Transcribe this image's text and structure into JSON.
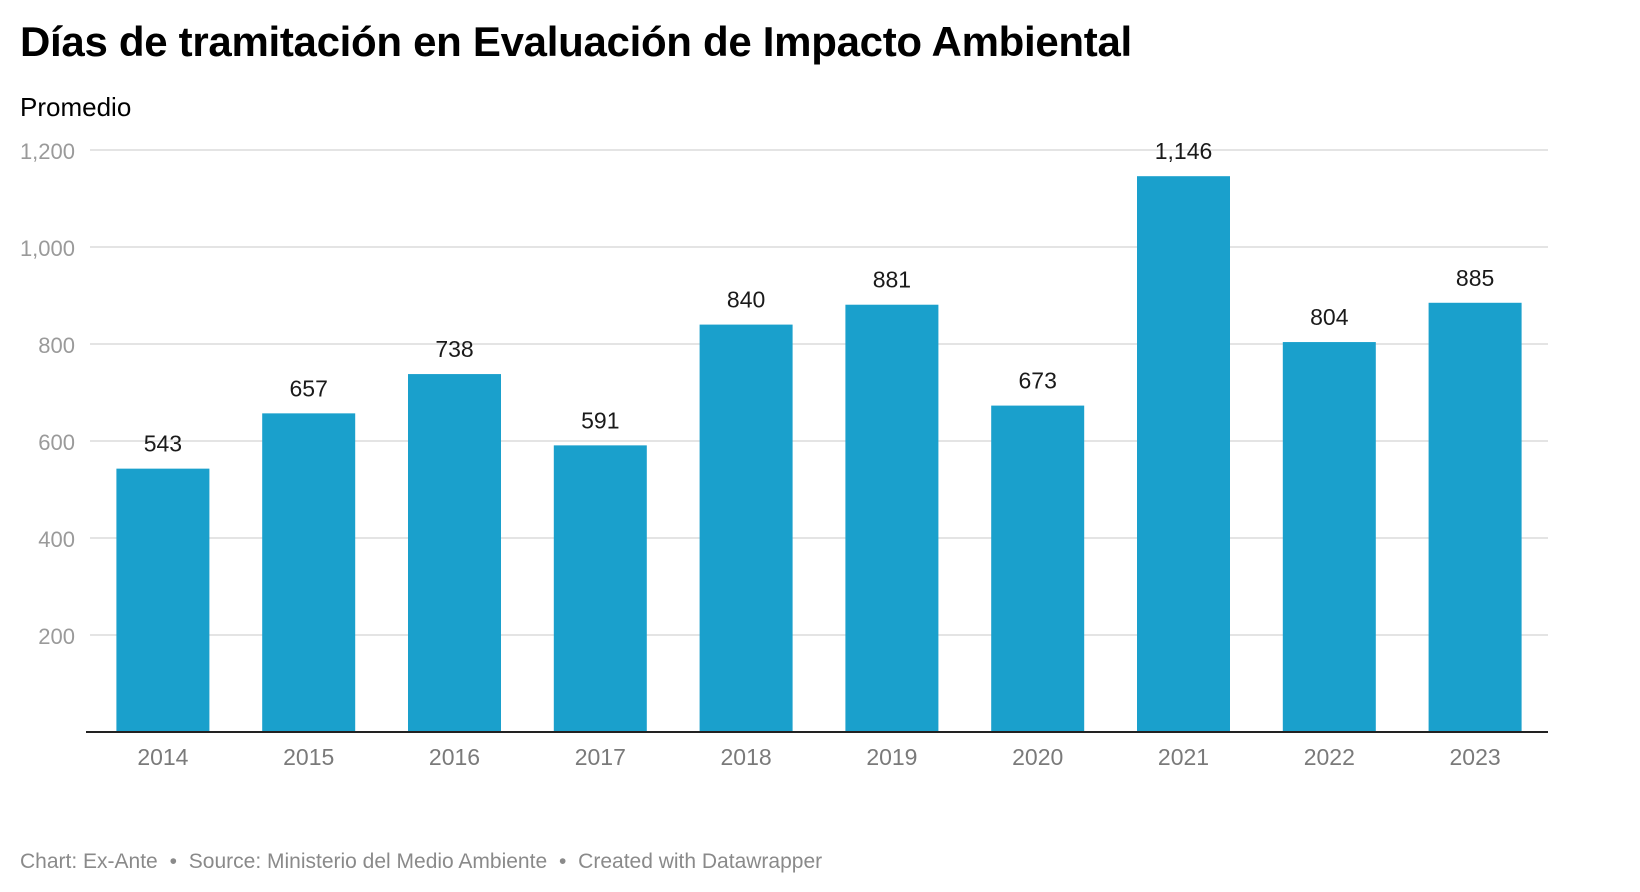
{
  "chart_data": {
    "type": "bar",
    "title": "Días de tramitación en Evaluación de Impacto Ambiental",
    "subtitle": "Promedio",
    "categories": [
      "2014",
      "2015",
      "2016",
      "2017",
      "2018",
      "2019",
      "2020",
      "2021",
      "2022",
      "2023"
    ],
    "values": [
      543,
      657,
      738,
      591,
      840,
      881,
      673,
      1146,
      804,
      885
    ],
    "value_labels": [
      "543",
      "657",
      "738",
      "591",
      "840",
      "881",
      "673",
      "1,146",
      "804",
      "885"
    ],
    "ylim": [
      0,
      1200
    ],
    "yticks": [
      200,
      400,
      600,
      800,
      1000,
      1200
    ],
    "ytick_labels": [
      "200",
      "400",
      "600",
      "800",
      "1,000",
      "1,200"
    ],
    "grid": true,
    "bar_color": "#1aa0cc"
  },
  "footer": {
    "chart_credit": "Chart: Ex-Ante",
    "source": "Source: Ministerio del Medio Ambiente",
    "created_with": "Created with Datawrapper",
    "separator": "•"
  }
}
